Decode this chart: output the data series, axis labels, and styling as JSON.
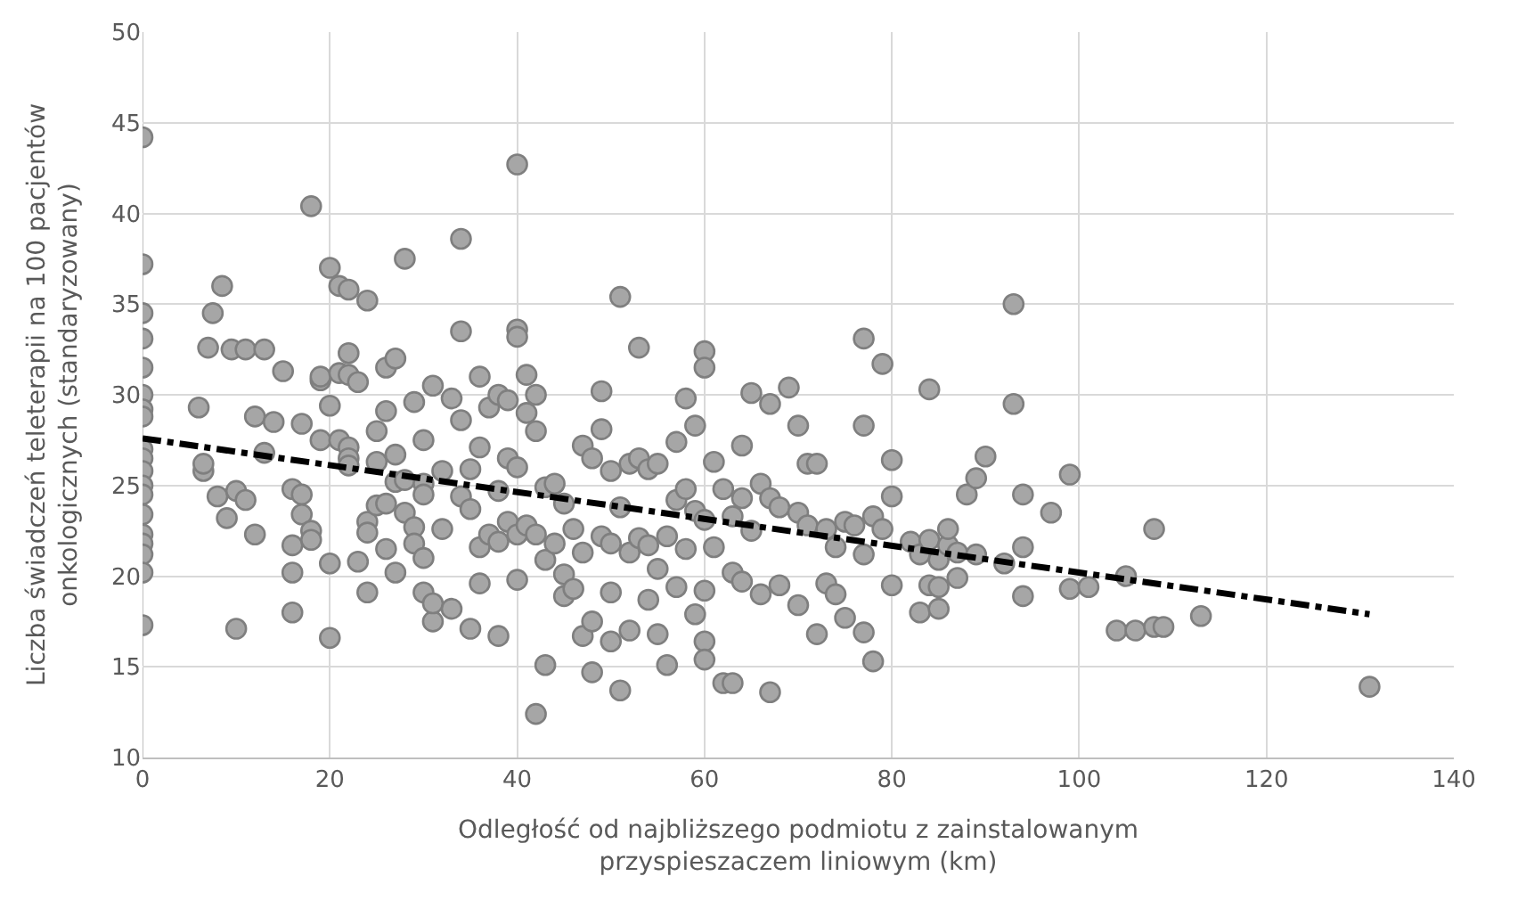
{
  "chart_data": {
    "type": "scatter",
    "xlabel": "Odległość od najbliższego podmiotu z zainstalowanym\nprzyspieszaczem liniowym (km)",
    "ylabel": "Liczba świadczeń teleterapii na 100 pacjentów\nonkologicznych (standaryzowany)",
    "xlim": [
      0,
      140
    ],
    "ylim": [
      10,
      50
    ],
    "xticks": [
      0,
      20,
      40,
      60,
      80,
      100,
      120,
      140
    ],
    "yticks": [
      10,
      15,
      20,
      25,
      30,
      35,
      40,
      45,
      50
    ],
    "grid": true,
    "series": [
      {
        "color": "#a6a6a6",
        "marker": "circle",
        "x": [
          0,
          0,
          0,
          0,
          0,
          0,
          0,
          0,
          0,
          0,
          0,
          0,
          0,
          0,
          0,
          0,
          0,
          0,
          0,
          6,
          6.5,
          6.5,
          7,
          7.5,
          8,
          8.5,
          9,
          10,
          9.5,
          10,
          11,
          11,
          12,
          12,
          13,
          13,
          14,
          15,
          16,
          16,
          16,
          16,
          17,
          17,
          17,
          18,
          18,
          18,
          19,
          19,
          19,
          20,
          20,
          20,
          20,
          21,
          21,
          21,
          22,
          22,
          22,
          22,
          22,
          22,
          23,
          23,
          24,
          24,
          24,
          24,
          25,
          25,
          25,
          26,
          26,
          26,
          26,
          27,
          27,
          27,
          27,
          28,
          28,
          28,
          29,
          29,
          29,
          30,
          30,
          30,
          30,
          30,
          31,
          31,
          31,
          32,
          32,
          33,
          33,
          34,
          34,
          34,
          34,
          35,
          35,
          35,
          36,
          36,
          36,
          36,
          37,
          37,
          38,
          38,
          38,
          38,
          39,
          39,
          39,
          40,
          40,
          40,
          40,
          40,
          40,
          41,
          41,
          41,
          42,
          42,
          42,
          42,
          43,
          43,
          43,
          44,
          44,
          45,
          45,
          45,
          46,
          46,
          47,
          47,
          47,
          48,
          48,
          48,
          49,
          49,
          49,
          50,
          50,
          50,
          50,
          51,
          51,
          51,
          52,
          52,
          52,
          53,
          53,
          53,
          54,
          54,
          54,
          55,
          55,
          55,
          56,
          56,
          57,
          57,
          57,
          58,
          58,
          58,
          59,
          59,
          59,
          60,
          60,
          60,
          60,
          60,
          60,
          61,
          61,
          62,
          62,
          63,
          63,
          63,
          64,
          64,
          64,
          65,
          65,
          66,
          66,
          67,
          67,
          67,
          68,
          68,
          69,
          70,
          70,
          70,
          71,
          71,
          72,
          72,
          73,
          73,
          74,
          74,
          75,
          75,
          76,
          77,
          77,
          77,
          77,
          78,
          78,
          79,
          79,
          80,
          80,
          80,
          82,
          83,
          83,
          84,
          84,
          84,
          85,
          85,
          85,
          86,
          86,
          87,
          87,
          88,
          89,
          89,
          90,
          92,
          93,
          93,
          94,
          94,
          94,
          97,
          99,
          99,
          101,
          104,
          105,
          106,
          108,
          108,
          109,
          113,
          131
        ],
        "values": [
          44.2,
          37.2,
          34.5,
          33.1,
          31.5,
          30,
          29.2,
          28.8,
          27,
          26.5,
          25.8,
          25,
          24.5,
          23.4,
          22.3,
          21.8,
          21.2,
          20.2,
          17.3,
          29.3,
          25.8,
          26.2,
          32.6,
          34.5,
          24.4,
          36,
          23.2,
          17.1,
          32.5,
          24.7,
          32.5,
          24.2,
          22.3,
          28.8,
          32.5,
          26.8,
          28.5,
          31.3,
          24.8,
          21.7,
          20.2,
          18,
          24.5,
          23.4,
          28.4,
          22.5,
          22,
          40.4,
          30.8,
          27.5,
          31,
          37,
          29.4,
          16.6,
          20.7,
          36,
          27.5,
          31.2,
          35.8,
          32.3,
          31.1,
          27.1,
          26.5,
          26.1,
          30.7,
          20.8,
          35.2,
          23,
          22.4,
          19.1,
          23.9,
          28,
          26.3,
          29.1,
          31.5,
          24,
          21.5,
          32,
          26.7,
          25.2,
          20.2,
          25.3,
          23.5,
          37.5,
          29.6,
          22.7,
          21.8,
          27.5,
          25.1,
          24.5,
          21,
          19.1,
          30.5,
          17.5,
          18.5,
          25.8,
          22.6,
          18.2,
          29.8,
          28.6,
          33.5,
          38.6,
          24.4,
          23.7,
          17.1,
          25.9,
          31,
          27.1,
          21.6,
          19.6,
          29.3,
          22.3,
          30,
          24.7,
          21.9,
          16.7,
          29.7,
          26.5,
          23,
          33.6,
          33.2,
          42.7,
          26,
          22.3,
          19.8,
          31.1,
          29,
          22.8,
          30,
          28,
          22.3,
          12.4,
          24.9,
          20.9,
          15.1,
          25.1,
          21.8,
          24,
          20.1,
          18.9,
          22.6,
          19.3,
          27.2,
          21.3,
          16.7,
          26.5,
          17.5,
          14.7,
          30.2,
          22.2,
          28.1,
          25.8,
          21.8,
          19.1,
          16.4,
          35.4,
          23.8,
          13.7,
          26.2,
          21.3,
          17,
          32.6,
          26.5,
          22.1,
          25.9,
          21.7,
          18.7,
          26.2,
          20.4,
          16.8,
          22.2,
          15.1,
          27.4,
          24.2,
          19.4,
          29.8,
          24.8,
          21.5,
          28.3,
          23.6,
          17.9,
          32.4,
          31.5,
          23.1,
          19.2,
          16.4,
          15.4,
          26.3,
          21.6,
          24.8,
          14.1,
          23.3,
          20.2,
          14.1,
          27.2,
          24.3,
          19.7,
          30.1,
          22.5,
          25.1,
          19,
          29.5,
          24.3,
          13.6,
          23.8,
          19.5,
          30.4,
          28.3,
          23.5,
          18.4,
          26.2,
          22.8,
          26.2,
          16.8,
          22.6,
          19.6,
          21.6,
          19,
          23,
          17.7,
          22.8,
          33.1,
          28.3,
          21.2,
          16.9,
          23.3,
          15.3,
          31.7,
          22.6,
          26.4,
          24.4,
          19.5,
          21.9,
          18,
          21.2,
          30.3,
          22,
          19.5,
          20.9,
          19.4,
          18.2,
          21.7,
          22.6,
          21.3,
          19.9,
          24.5,
          25.4,
          21.2,
          26.6,
          20.7,
          29.5,
          35,
          24.5,
          21.6,
          18.9,
          23.5,
          25.6,
          19.3,
          19.4,
          17,
          20,
          17,
          22.6,
          17.2,
          17.2,
          17.8,
          13.9
        ]
      },
      {
        "type": "line",
        "color": "#000000",
        "marker": "none",
        "line_style": "dashed",
        "x": [
          0,
          131
        ],
        "values": [
          27.6,
          17.9
        ]
      }
    ]
  }
}
